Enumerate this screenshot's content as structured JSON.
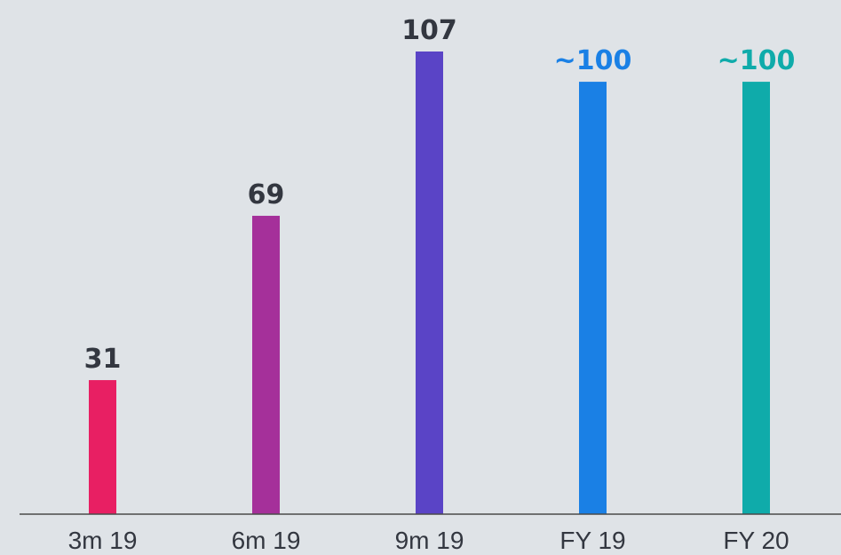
{
  "chart_data": {
    "type": "bar",
    "categories": [
      "3m 19",
      "6m 19",
      "9m 19",
      "FY 19",
      "FY 20"
    ],
    "values": [
      31,
      69,
      107,
      100,
      100
    ],
    "data_labels": [
      "31",
      "69",
      "107",
      "~100",
      "~100"
    ],
    "ylim": [
      0,
      107
    ],
    "grid": false,
    "legend": "none",
    "colors": {
      "bars": [
        "#e81f63",
        "#a5309a",
        "#5a44c6",
        "#1a80e5",
        "#0fabaa"
      ],
      "labels": [
        "#333740",
        "#333740",
        "#333740",
        "#1a80e5",
        "#0fabaa"
      ],
      "axis": "#4a4a4a",
      "background": "#dfe3e7"
    }
  }
}
